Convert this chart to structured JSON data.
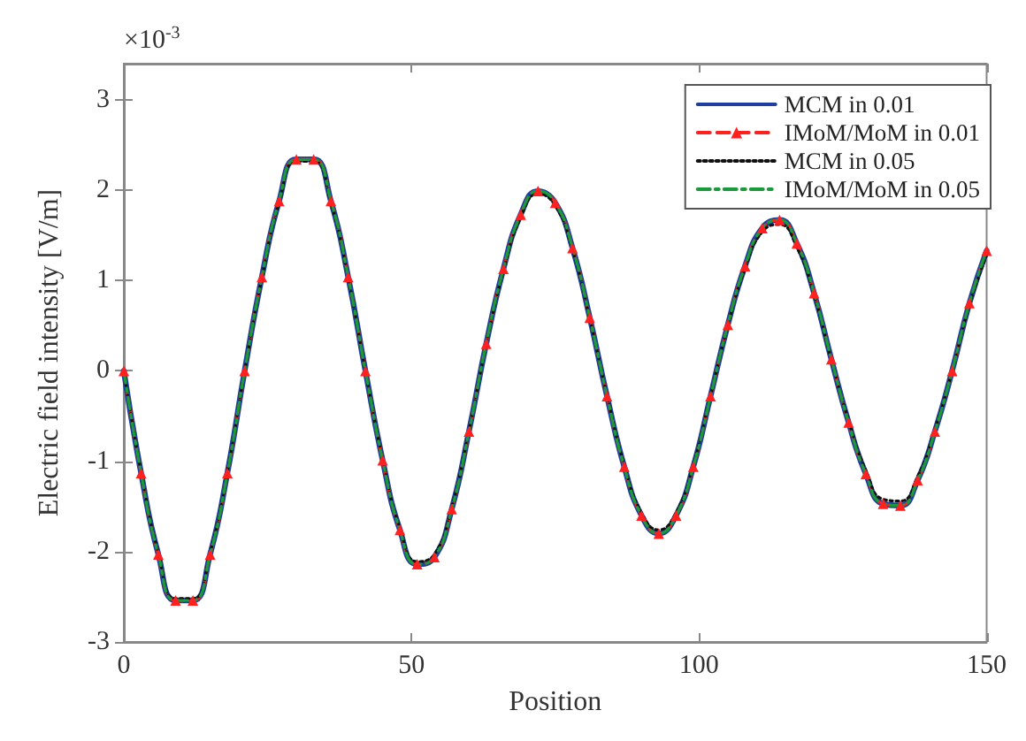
{
  "chart_data": {
    "type": "line",
    "xlabel": "Position",
    "ylabel": "Electric field intensity [V/m]",
    "annotations": [
      "×10$^{-3}$"
    ],
    "x": [
      0,
      3,
      6,
      9,
      12,
      15,
      18,
      21,
      24,
      27,
      30,
      33,
      36,
      39,
      42,
      45,
      48,
      51,
      54,
      57,
      60,
      63,
      66,
      69,
      72,
      75,
      78,
      81,
      84,
      87,
      90,
      93,
      96,
      99,
      102,
      105,
      108,
      111,
      114,
      117,
      120,
      123,
      126,
      129,
      132,
      135,
      138,
      141,
      144,
      147,
      150
    ],
    "xlim": [
      0,
      150
    ],
    "xticks": [
      0,
      50,
      100,
      150
    ],
    "ylim": [
      -3,
      3.4
    ],
    "yticks": [
      -3,
      -2,
      -1,
      0,
      1,
      2,
      3
    ],
    "grid": false,
    "legend": "top right",
    "series": [
      {
        "name": "MCM in 0.01",
        "color": "#1f3fa0",
        "line_style": "solid",
        "marker": "none",
        "values": [
          0,
          -1.13,
          -2.03,
          -2.54,
          -2.54,
          -2.03,
          -1.13,
          0,
          1.04,
          1.88,
          2.34,
          2.34,
          1.88,
          1.04,
          0,
          -0.99,
          -1.76,
          -2.14,
          -2.06,
          -1.53,
          -0.67,
          0.3,
          1.13,
          1.73,
          1.99,
          1.86,
          1.36,
          0.59,
          -0.28,
          -1.06,
          -1.6,
          -1.8,
          -1.6,
          -1.06,
          -0.28,
          0.51,
          1.16,
          1.58,
          1.67,
          1.41,
          0.86,
          0.13,
          -0.57,
          -1.14,
          -1.47,
          -1.49,
          -1.21,
          -0.67,
          0,
          0.75,
          1.33
        ]
      },
      {
        "name": "IMoM/MoM in 0.01",
        "color": "#ff2020",
        "line_style": "dashed",
        "marker": "triangle",
        "values": [
          0,
          -1.13,
          -2.03,
          -2.54,
          -2.54,
          -2.03,
          -1.13,
          0,
          1.04,
          1.88,
          2.34,
          2.34,
          1.88,
          1.04,
          0,
          -0.99,
          -1.76,
          -2.14,
          -2.06,
          -1.53,
          -0.67,
          0.3,
          1.13,
          1.73,
          1.99,
          1.86,
          1.36,
          0.59,
          -0.28,
          -1.06,
          -1.6,
          -1.8,
          -1.6,
          -1.06,
          -0.28,
          0.51,
          1.16,
          1.58,
          1.67,
          1.41,
          0.86,
          0.13,
          -0.57,
          -1.14,
          -1.47,
          -1.49,
          -1.21,
          -0.67,
          0,
          0.75,
          1.33
        ]
      },
      {
        "name": "MCM in 0.05",
        "color": "#111111",
        "line_style": "dotted",
        "marker": "none",
        "values": [
          0,
          -1.12,
          -2.01,
          -2.52,
          -2.52,
          -2.01,
          -1.12,
          0,
          1.03,
          1.86,
          2.32,
          2.32,
          1.86,
          1.03,
          0,
          -0.98,
          -1.74,
          -2.11,
          -2.03,
          -1.51,
          -0.66,
          0.29,
          1.11,
          1.7,
          1.96,
          1.83,
          1.34,
          0.58,
          -0.27,
          -1.04,
          -1.57,
          -1.76,
          -1.57,
          -1.04,
          -0.27,
          0.5,
          1.13,
          1.54,
          1.62,
          1.37,
          0.84,
          0.12,
          -0.55,
          -1.1,
          -1.42,
          -1.44,
          -1.17,
          -0.65,
          0,
          0.73,
          1.28
        ]
      },
      {
        "name": "IMoM/MoM in 0.05",
        "color": "#1a9a3a",
        "line_style": "dashdot",
        "marker": "none",
        "values": [
          0,
          -1.13,
          -2.03,
          -2.54,
          -2.54,
          -2.03,
          -1.13,
          0,
          1.04,
          1.88,
          2.34,
          2.34,
          1.88,
          1.04,
          0,
          -0.99,
          -1.76,
          -2.14,
          -2.06,
          -1.53,
          -0.67,
          0.3,
          1.13,
          1.73,
          1.99,
          1.86,
          1.36,
          0.59,
          -0.28,
          -1.06,
          -1.6,
          -1.8,
          -1.6,
          -1.06,
          -0.28,
          0.51,
          1.16,
          1.58,
          1.67,
          1.41,
          0.86,
          0.13,
          -0.57,
          -1.14,
          -1.47,
          -1.49,
          -1.21,
          -0.67,
          0,
          0.75,
          1.33
        ]
      }
    ]
  }
}
